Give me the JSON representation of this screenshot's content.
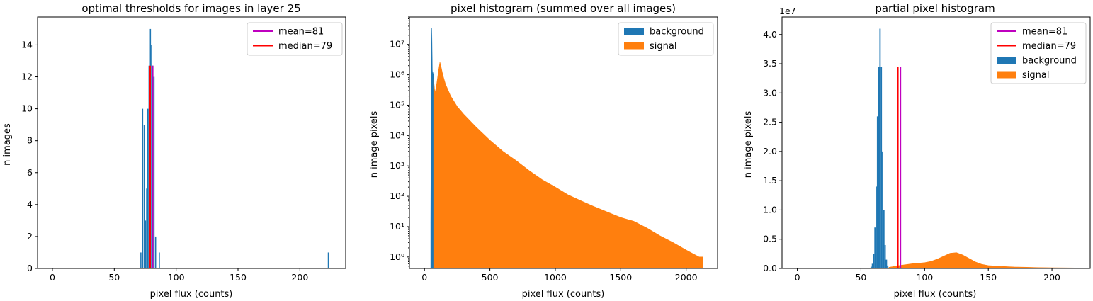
{
  "colors": {
    "background": "#1f77b4",
    "signal": "#ff7f0e",
    "mean": "#bf00bf",
    "median": "#ff0000"
  },
  "chart_data": [
    {
      "type": "bar",
      "title": "optimal thresholds for images in layer 25",
      "xlabel": "pixel flux (counts)",
      "ylabel": "n images",
      "xlim": [
        -12,
        237
      ],
      "ylim": [
        0,
        15.75
      ],
      "xticks": [
        0,
        50,
        100,
        150,
        200,
        250
      ],
      "xtick_labels": [
        "0",
        "50",
        "100",
        "150",
        "200"
      ],
      "yticks": [
        0,
        2,
        4,
        6,
        8,
        10,
        12,
        14
      ],
      "ytick_labels": [
        "0",
        "2",
        "4",
        "6",
        "8",
        "10",
        "12",
        "14"
      ],
      "legend": {
        "position": "upper-right",
        "entries": [
          {
            "label": "mean=81",
            "color": "#bf00bf",
            "kind": "line"
          },
          {
            "label": "median=79",
            "color": "#ff0000",
            "kind": "line"
          }
        ]
      },
      "series": [
        {
          "name": "thresholds",
          "color": "#1f77b4",
          "bin_width": 0.9,
          "bins": [
            {
              "x": 71.5,
              "y": 1
            },
            {
              "x": 72.9,
              "y": 10
            },
            {
              "x": 74.2,
              "y": 9
            },
            {
              "x": 75.2,
              "y": 3
            },
            {
              "x": 76.2,
              "y": 5
            },
            {
              "x": 77.1,
              "y": 10
            },
            {
              "x": 78.1,
              "y": 12.7
            },
            {
              "x": 79.2,
              "y": 15
            },
            {
              "x": 80.2,
              "y": 14
            },
            {
              "x": 81.2,
              "y": 12.7
            },
            {
              "x": 82.1,
              "y": 12
            },
            {
              "x": 83.4,
              "y": 2
            },
            {
              "x": 86.4,
              "y": 1
            },
            {
              "x": 223.0,
              "y": 1
            }
          ]
        }
      ],
      "vlines": [
        {
          "name": "mean=81",
          "x": 81,
          "ymin": 0,
          "ymax": 12.7,
          "color": "#bf00bf"
        },
        {
          "name": "median=79",
          "x": 79,
          "ymin": 0,
          "ymax": 12.7,
          "color": "#ff0000"
        }
      ]
    },
    {
      "type": "bar",
      "title": "pixel histogram (summed over all images)",
      "xlabel": "pixel flux (counts)",
      "ylabel": "n image pixels",
      "yscale": "log",
      "xlim": [
        -115,
        2240
      ],
      "ylim": [
        0.42,
        80000000
      ],
      "xticks": [
        0,
        500,
        1000,
        1500,
        2000
      ],
      "xtick_labels": [
        "0",
        "500",
        "1000",
        "1500",
        "2000"
      ],
      "yticks": [
        1,
        10,
        100,
        1000,
        10000,
        100000,
        1000000,
        10000000
      ],
      "ytick_labels": [
        "10⁰",
        "10¹",
        "10²",
        "10³",
        "10⁴",
        "10⁵",
        "10⁶",
        "10⁷"
      ],
      "legend": {
        "position": "upper-right",
        "entries": [
          {
            "label": "background",
            "color": "#1f77b4",
            "kind": "patch"
          },
          {
            "label": "signal",
            "color": "#ff7f0e",
            "kind": "patch"
          }
        ]
      },
      "series": [
        {
          "name": "background",
          "color": "#1f77b4",
          "points": [
            [
              48,
              13
            ],
            [
              52,
              1600000
            ],
            [
              56,
              35000000
            ],
            [
              60,
              1400000
            ],
            [
              64,
              900000
            ],
            [
              68,
              1200000
            ],
            [
              70,
              600000
            ]
          ]
        },
        {
          "name": "signal",
          "color": "#ff7f0e",
          "points": [
            [
              70,
              700000
            ],
            [
              80,
              250000
            ],
            [
              90,
              400000
            ],
            [
              100,
              800000
            ],
            [
              110,
              1600000
            ],
            [
              118,
              2600000
            ],
            [
              125,
              2000000
            ],
            [
              140,
              1000000
            ],
            [
              160,
              500000
            ],
            [
              200,
              200000
            ],
            [
              250,
              90000
            ],
            [
              300,
              50000
            ],
            [
              400,
              18000
            ],
            [
              500,
              7000
            ],
            [
              600,
              3000
            ],
            [
              700,
              1500
            ],
            [
              800,
              700
            ],
            [
              900,
              350
            ],
            [
              1000,
              200
            ],
            [
              1100,
              110
            ],
            [
              1200,
              70
            ],
            [
              1300,
              45
            ],
            [
              1400,
              30
            ],
            [
              1500,
              20
            ],
            [
              1600,
              15
            ],
            [
              1700,
              9
            ],
            [
              1800,
              5
            ],
            [
              1900,
              3
            ],
            [
              2000,
              1.7
            ],
            [
              2100,
              1
            ],
            [
              2130,
              1
            ]
          ]
        }
      ]
    },
    {
      "type": "bar",
      "title": "partial pixel histogram",
      "xlabel": "pixel flux (counts)",
      "ylabel": "n image pixels",
      "y_offset_label": "1e7",
      "y_multiplier": 10000000,
      "xlim": [
        -12,
        230
      ],
      "ylim": [
        0,
        4.3
      ],
      "xticks": [
        0,
        50,
        100,
        150,
        200
      ],
      "xtick_labels": [
        "0",
        "50",
        "100",
        "150",
        "200"
      ],
      "yticks": [
        0,
        0.5,
        1.0,
        1.5,
        2.0,
        2.5,
        3.0,
        3.5,
        4.0
      ],
      "ytick_labels": [
        "0.0",
        "0.5",
        "1.0",
        "1.5",
        "2.0",
        "2.5",
        "3.0",
        "3.5",
        "4.0"
      ],
      "legend": {
        "position": "upper-right",
        "entries": [
          {
            "label": "mean=81",
            "color": "#bf00bf",
            "kind": "line"
          },
          {
            "label": "median=79",
            "color": "#ff0000",
            "kind": "line"
          },
          {
            "label": "background",
            "color": "#1f77b4",
            "kind": "patch"
          },
          {
            "label": "signal",
            "color": "#ff7f0e",
            "kind": "patch"
          }
        ]
      },
      "series": [
        {
          "name": "background",
          "color": "#1f77b4",
          "bin_width": 1,
          "bins": [
            {
              "x": 57,
              "y": 0.01
            },
            {
              "x": 58,
              "y": 0.03
            },
            {
              "x": 59,
              "y": 0.08
            },
            {
              "x": 60,
              "y": 0.25
            },
            {
              "x": 61,
              "y": 0.7
            },
            {
              "x": 62,
              "y": 1.4
            },
            {
              "x": 63,
              "y": 2.6
            },
            {
              "x": 64,
              "y": 3.45
            },
            {
              "x": 65,
              "y": 4.1
            },
            {
              "x": 66,
              "y": 3.45
            },
            {
              "x": 67,
              "y": 2.0
            },
            {
              "x": 68,
              "y": 1.0
            },
            {
              "x": 69,
              "y": 0.4
            },
            {
              "x": 70,
              "y": 0.15
            },
            {
              "x": 71,
              "y": 0.05
            }
          ]
        },
        {
          "name": "signal",
          "color": "#ff7f0e",
          "points": [
            [
              72,
              0.02
            ],
            [
              80,
              0.05
            ],
            [
              90,
              0.08
            ],
            [
              100,
              0.1
            ],
            [
              105,
              0.12
            ],
            [
              110,
              0.16
            ],
            [
              115,
              0.21
            ],
            [
              120,
              0.26
            ],
            [
              125,
              0.27
            ],
            [
              130,
              0.23
            ],
            [
              135,
              0.17
            ],
            [
              140,
              0.11
            ],
            [
              145,
              0.07
            ],
            [
              150,
              0.05
            ],
            [
              160,
              0.035
            ],
            [
              170,
              0.025
            ],
            [
              180,
              0.02
            ],
            [
              190,
              0.015
            ],
            [
              200,
              0.012
            ],
            [
              210,
              0.01
            ],
            [
              218,
              0.008
            ]
          ]
        }
      ],
      "vlines": [
        {
          "name": "mean=81",
          "x": 81,
          "ymin": 0,
          "ymax": 3.45,
          "color": "#bf00bf"
        },
        {
          "name": "median=79",
          "x": 79,
          "ymin": 0,
          "ymax": 3.45,
          "color": "#ff0000"
        }
      ]
    }
  ]
}
